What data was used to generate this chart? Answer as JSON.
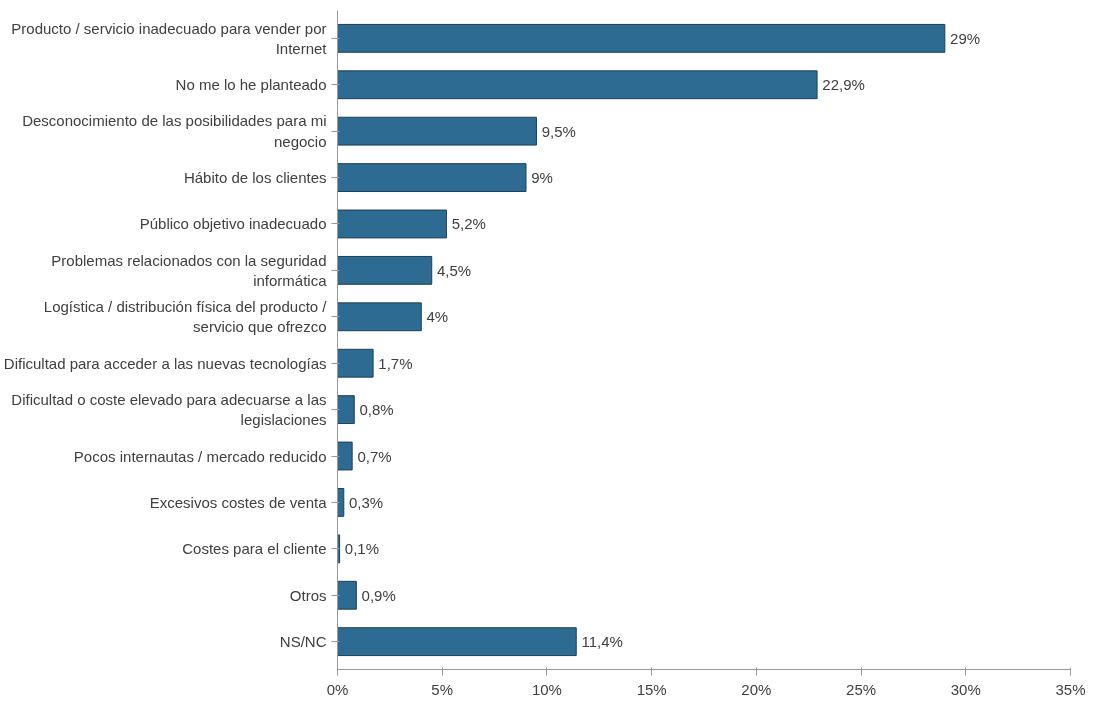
{
  "chart_data": {
    "type": "bar",
    "orientation": "horizontal",
    "categories": [
      "Producto / servicio inadecuado para vender por Internet",
      "No me lo he planteado",
      "Desconocimiento de las posibilidades para mi negocio",
      "Hábito de los clientes",
      "Público objetivo inadecuado",
      "Problemas relacionados con la seguridad informática",
      "Logística / distribución física del producto / servicio que ofrezco",
      "Dificultad para acceder a las nuevas tecnologías",
      "Dificultad o coste elevado para adecuarse a las legislaciones",
      "Pocos internautas / mercado reducido",
      "Excesivos costes de venta",
      "Costes para el cliente",
      "Otros",
      "NS/NC"
    ],
    "values": [
      29,
      22.9,
      9.5,
      9,
      5.2,
      4.5,
      4,
      1.7,
      0.8,
      0.7,
      0.3,
      0.1,
      0.9,
      11.4
    ],
    "value_labels": [
      "29%",
      "22,9%",
      "9,5%",
      "9%",
      "5,2%",
      "4,5%",
      "4%",
      "1,7%",
      "0,8%",
      "0,7%",
      "0,3%",
      "0,1%",
      "0,9%",
      "11,4%"
    ],
    "color": "#2e6b93",
    "xlim": [
      0,
      35
    ],
    "xticks": [
      {
        "value": 0,
        "label": "0%"
      },
      {
        "value": 5,
        "label": "5%"
      },
      {
        "value": 10,
        "label": "10%"
      },
      {
        "value": 15,
        "label": "15%"
      },
      {
        "value": 20,
        "label": "20%"
      },
      {
        "value": 25,
        "label": "25%"
      },
      {
        "value": 30,
        "label": "30%"
      },
      {
        "value": 35,
        "label": "35%"
      }
    ],
    "grid": false
  }
}
